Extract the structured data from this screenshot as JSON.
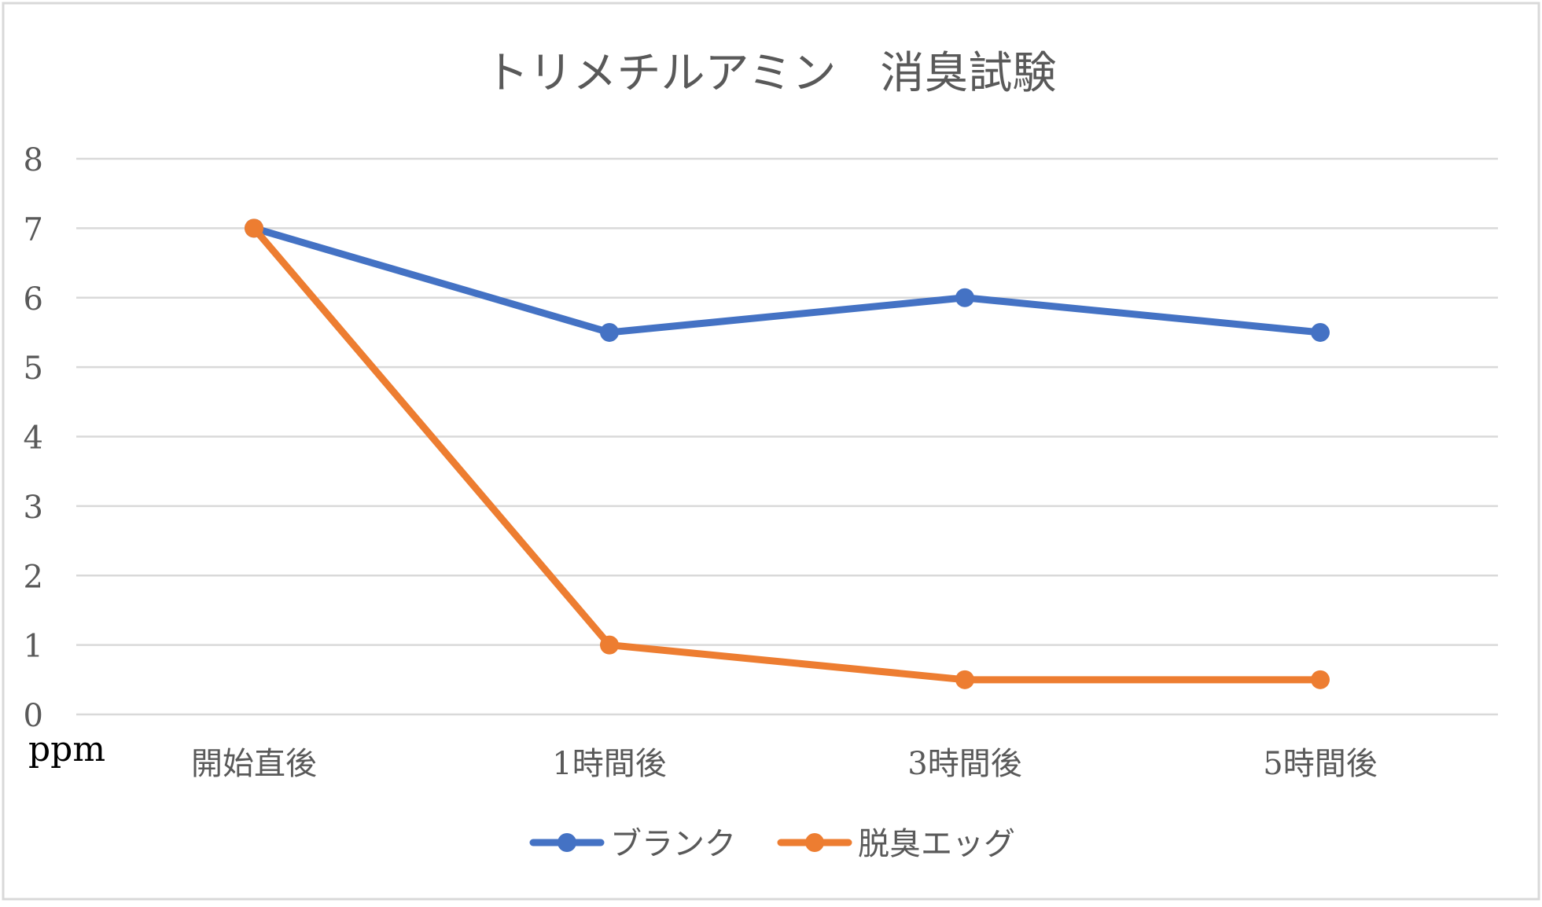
{
  "chart_data": {
    "type": "line",
    "title": "トリメチルアミン　消臭試験",
    "categories": [
      "開始直後",
      "1時間後",
      "3時間後",
      "5時間後"
    ],
    "series": [
      {
        "name": "ブランク",
        "color": "#4472C4",
        "values": [
          7,
          5.5,
          6,
          5.5
        ]
      },
      {
        "name": "脱臭エッグ",
        "color": "#ED7D31",
        "values": [
          7,
          1,
          0.5,
          0.5
        ]
      }
    ],
    "xlabel": "",
    "ylabel": "ppm",
    "ylim": [
      0,
      8
    ],
    "yticks": [
      "0",
      "1",
      "2",
      "3",
      "4",
      "5",
      "6",
      "7",
      "8"
    ],
    "grid": true,
    "legend": "bottom"
  }
}
